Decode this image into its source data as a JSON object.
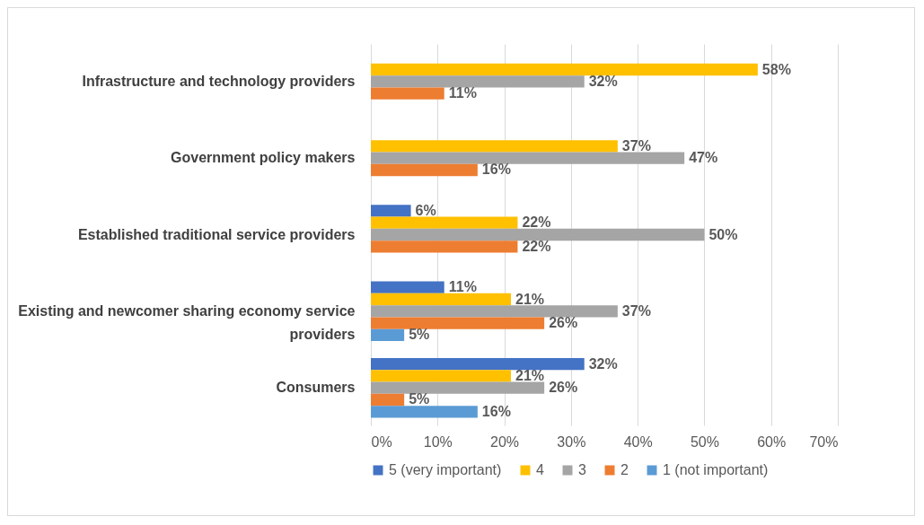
{
  "chart_data": {
    "type": "bar",
    "orientation": "horizontal",
    "categories": [
      "Infrastructure and technology providers",
      "Government policy makers",
      "Established traditional service providers",
      "Existing and newcomer sharing economy service providers",
      "Consumers"
    ],
    "series": [
      {
        "name": "5 (very important)",
        "color": "#4472c4",
        "values": [
          null,
          null,
          6,
          11,
          32
        ],
        "value_labels": [
          null,
          null,
          "6%",
          "11%",
          "32%"
        ]
      },
      {
        "name": "4",
        "color": "#ffc000",
        "values": [
          58,
          37,
          22,
          21,
          21
        ],
        "value_labels": [
          "58%",
          "37%",
          "22%",
          "21%",
          "21%"
        ]
      },
      {
        "name": "3",
        "color": "#a5a5a5",
        "values": [
          32,
          47,
          50,
          37,
          26
        ],
        "value_labels": [
          "32%",
          "47%",
          "50%",
          "37%",
          "26%"
        ]
      },
      {
        "name": "2",
        "color": "#ed7d31",
        "values": [
          11,
          16,
          22,
          26,
          5
        ],
        "value_labels": [
          "11%",
          "16%",
          "22%",
          "26%",
          "5%"
        ]
      },
      {
        "name": "1 (not important)",
        "color": "#5b9bd5",
        "values": [
          null,
          null,
          null,
          5,
          16
        ],
        "value_labels": [
          null,
          null,
          null,
          "5%",
          "16%"
        ]
      }
    ],
    "xlim": [
      0,
      70
    ],
    "xticks": [
      {
        "value": 0,
        "label": "0%"
      },
      {
        "value": 10,
        "label": "10%"
      },
      {
        "value": 20,
        "label": "20%"
      },
      {
        "value": 30,
        "label": "30%"
      },
      {
        "value": 40,
        "label": "40%"
      },
      {
        "value": 50,
        "label": "50%"
      },
      {
        "value": 60,
        "label": "60%"
      },
      {
        "value": 70,
        "label": "70%"
      }
    ],
    "grid": "x",
    "legend": "bottom"
  }
}
